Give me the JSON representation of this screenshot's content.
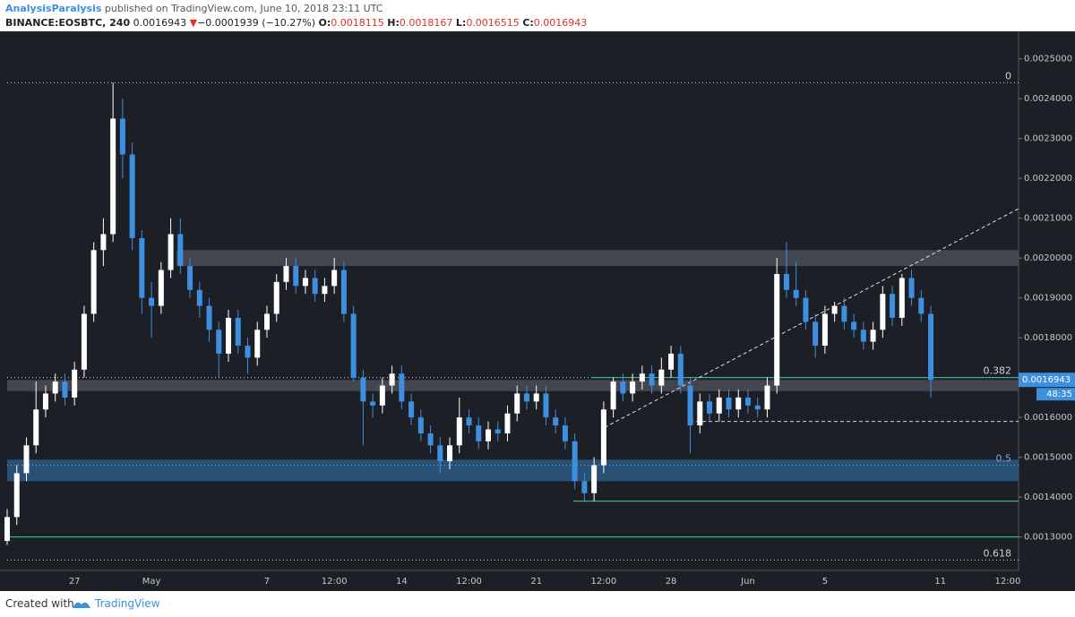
{
  "header": {
    "author": "AnalysisParalysis",
    "published": "published on TradingView.com, June 10, 2018 23:11 UTC",
    "symbol": "BINANCE:EOSBTC, 240",
    "price": "0.0016943",
    "arrow": "▼",
    "change": "−0.0001939 (−10.27%)",
    "o_label": "O:",
    "o": "0.0018115",
    "h_label": "H:",
    "h": "0.0018167",
    "l_label": "L:",
    "l": "0.0016515",
    "c_label": "C:",
    "c": "0.0016943"
  },
  "footer": {
    "created": "Created with",
    "brand": "TradingView"
  },
  "chart_data": {
    "type": "candlestick",
    "categories": [
      null,
      null,
      null,
      null,
      null,
      null,
      null,
      "27",
      null,
      null,
      null,
      null,
      null,
      null,
      null,
      "May",
      null,
      null,
      null,
      null,
      null,
      null,
      null,
      null,
      null,
      null,
      null,
      "7",
      null,
      null,
      null,
      null,
      null,
      null,
      "12:00",
      null,
      null,
      null,
      null,
      null,
      null,
      "14",
      null,
      null,
      null,
      null,
      null,
      null,
      "12:00",
      null,
      null,
      null,
      null,
      null,
      null,
      "21",
      null,
      null,
      null,
      null,
      null,
      null,
      "12:00",
      null,
      null,
      null,
      null,
      null,
      null,
      "28",
      null,
      null,
      null,
      null,
      null,
      null,
      null,
      "Jun",
      null,
      null,
      null,
      null,
      null,
      null,
      null,
      "5",
      null,
      null,
      null,
      null,
      null,
      null,
      null,
      null,
      null,
      null,
      null,
      "11",
      null,
      null,
      null,
      null,
      null,
      null,
      "12:00"
    ],
    "open": [
      0.00129,
      0.00135,
      0.00146,
      0.00153,
      0.00162,
      0.00166,
      0.00169,
      0.00165,
      0.00172,
      0.00186,
      0.00202,
      0.00206,
      0.00235,
      0.00226,
      0.00205,
      0.0019,
      0.00188,
      0.00197,
      0.00206,
      0.00198,
      0.00192,
      0.00188,
      0.00182,
      0.00176,
      0.00185,
      0.00178,
      0.00175,
      0.00182,
      0.00186,
      0.00194,
      0.00198,
      0.00193,
      0.00195,
      0.00191,
      0.00193,
      0.00197,
      0.00186,
      0.0017,
      0.00164,
      0.00163,
      0.00168,
      0.00171,
      0.00164,
      0.0016,
      0.00156,
      0.00153,
      0.00149,
      0.00153,
      0.0016,
      0.00158,
      0.00154,
      0.00157,
      0.00156,
      0.00161,
      0.00166,
      0.00164,
      0.00166,
      0.0016,
      0.00158,
      0.00154,
      0.00144,
      0.00141,
      0.00148,
      0.00162,
      0.00169,
      0.00166,
      0.00169,
      0.00171,
      0.00168,
      0.00172,
      0.00176,
      0.00168,
      0.00158,
      0.00164,
      0.00161,
      0.00165,
      0.00162,
      0.00165,
      0.00163,
      0.00162,
      0.00168,
      0.00196,
      0.00192,
      0.0019,
      0.00184,
      0.00178,
      0.00186,
      0.00188,
      0.00184,
      0.00182,
      0.00179,
      0.00182,
      0.00191,
      0.00185,
      0.00195,
      0.0019,
      0.00186,
      null,
      null,
      null,
      null,
      null,
      null,
      null,
      null
    ],
    "high": [
      0.00137,
      0.00148,
      0.00155,
      0.00169,
      0.00168,
      0.00171,
      0.00171,
      0.00174,
      0.00188,
      0.00204,
      0.0021,
      0.00244,
      0.0024,
      0.00229,
      0.00207,
      0.00194,
      0.00199,
      0.0021,
      0.0021,
      0.002,
      0.00194,
      0.0019,
      0.00184,
      0.00187,
      0.00187,
      0.0018,
      0.00184,
      0.00188,
      0.00196,
      0.002,
      0.002,
      0.00197,
      0.00197,
      0.00195,
      0.002,
      0.00199,
      0.00188,
      0.00172,
      0.00166,
      0.0017,
      0.00173,
      0.00173,
      0.00166,
      0.00162,
      0.00158,
      0.00155,
      0.00155,
      0.00165,
      0.00162,
      0.0016,
      0.00159,
      0.00159,
      0.00163,
      0.00168,
      0.00168,
      0.00168,
      0.00168,
      0.00162,
      0.0016,
      0.00156,
      0.00146,
      0.0015,
      0.00164,
      0.0017,
      0.00171,
      0.00171,
      0.00173,
      0.00173,
      0.00175,
      0.00178,
      0.00178,
      0.0017,
      0.00166,
      0.00166,
      0.00167,
      0.00167,
      0.00167,
      0.00167,
      0.00165,
      0.0017,
      0.002,
      0.00204,
      0.00199,
      0.00192,
      0.00186,
      0.00188,
      0.00189,
      0.0019,
      0.00186,
      0.00184,
      0.00184,
      0.00193,
      0.00193,
      0.00196,
      0.00197,
      0.00192,
      0.00188,
      null,
      null,
      null,
      null,
      null,
      null,
      null,
      null
    ],
    "low": [
      0.00128,
      0.00133,
      0.00144,
      0.00151,
      0.0016,
      0.00164,
      0.00163,
      0.00163,
      0.0017,
      0.00184,
      0.00198,
      0.00204,
      0.0022,
      0.00202,
      0.00186,
      0.0018,
      0.00186,
      0.00195,
      0.00196,
      0.0019,
      0.00185,
      0.00179,
      0.0017,
      0.00174,
      0.00176,
      0.00171,
      0.00173,
      0.0018,
      0.00184,
      0.00192,
      0.00191,
      0.00191,
      0.00189,
      0.00189,
      0.00191,
      0.00184,
      0.00169,
      0.00153,
      0.0016,
      0.00161,
      0.00166,
      0.00162,
      0.00158,
      0.00154,
      0.00151,
      0.00146,
      0.00147,
      0.00151,
      0.00156,
      0.00152,
      0.00152,
      0.00154,
      0.00154,
      0.00159,
      0.00162,
      0.00162,
      0.00158,
      0.00156,
      0.00152,
      0.00142,
      0.00139,
      0.00139,
      0.00146,
      0.0016,
      0.00164,
      0.00164,
      0.00167,
      0.00166,
      0.00166,
      0.0017,
      0.00166,
      0.00151,
      0.00156,
      0.00159,
      0.00159,
      0.0016,
      0.0016,
      0.00161,
      0.0016,
      0.0016,
      0.00166,
      0.0019,
      0.00188,
      0.00182,
      0.00175,
      0.00176,
      0.00184,
      0.00182,
      0.0018,
      0.00177,
      0.00177,
      0.0018,
      0.00183,
      0.00183,
      0.00188,
      0.00184,
      0.00165,
      null,
      null,
      null,
      null,
      null,
      null,
      null,
      null
    ],
    "close": [
      0.00135,
      0.00146,
      0.00153,
      0.00162,
      0.00166,
      0.00169,
      0.00165,
      0.00172,
      0.00186,
      0.00202,
      0.00206,
      0.00235,
      0.00226,
      0.00205,
      0.0019,
      0.00188,
      0.00197,
      0.00206,
      0.00198,
      0.00192,
      0.00188,
      0.00182,
      0.00176,
      0.00185,
      0.00178,
      0.00175,
      0.00182,
      0.00186,
      0.00194,
      0.00198,
      0.00193,
      0.00195,
      0.00191,
      0.00193,
      0.00197,
      0.00186,
      0.0017,
      0.00164,
      0.00163,
      0.00168,
      0.00171,
      0.00164,
      0.0016,
      0.00156,
      0.00153,
      0.00149,
      0.00153,
      0.0016,
      0.00158,
      0.00154,
      0.00157,
      0.00156,
      0.00161,
      0.00166,
      0.00164,
      0.00166,
      0.0016,
      0.00158,
      0.00154,
      0.00144,
      0.00141,
      0.00148,
      0.00162,
      0.00169,
      0.00166,
      0.00169,
      0.00171,
      0.00168,
      0.00172,
      0.00176,
      0.00168,
      0.00158,
      0.00164,
      0.00161,
      0.00165,
      0.00162,
      0.00165,
      0.00163,
      0.00162,
      0.00168,
      0.00196,
      0.00192,
      0.0019,
      0.00184,
      0.00178,
      0.00186,
      0.00188,
      0.00184,
      0.00182,
      0.00179,
      0.00182,
      0.00191,
      0.00185,
      0.00195,
      0.0019,
      0.00186,
      0.0016943,
      null,
      null,
      null,
      null,
      null,
      null,
      null,
      null
    ],
    "up_color": "#ffffff",
    "down_color": "#3d8fe0",
    "ylim": [
      0.001216,
      0.002569
    ],
    "yticks": [
      {
        "value": 0.0013,
        "label": "0.0013000"
      },
      {
        "value": 0.0014,
        "label": "0.0014000"
      },
      {
        "value": 0.0015,
        "label": "0.0015000"
      },
      {
        "value": 0.0016,
        "label": "0.0016000"
      },
      {
        "value": 0.0017,
        "label": "0.0017000"
      },
      {
        "value": 0.0018,
        "label": "0.0018000"
      },
      {
        "value": 0.0019,
        "label": "0.0019000"
      },
      {
        "value": 0.002,
        "label": "0.0020000"
      },
      {
        "value": 0.0021,
        "label": "0.0021000"
      },
      {
        "value": 0.0022,
        "label": "0.0022000"
      },
      {
        "value": 0.0023,
        "label": "0.0023000"
      },
      {
        "value": 0.0024,
        "label": "0.0024000"
      },
      {
        "value": 0.0025,
        "label": "0.0025000"
      }
    ],
    "zones": [
      {
        "low": 0.00198,
        "high": 0.00202,
        "color": "#4a4e57"
      },
      {
        "low": 0.001666,
        "high": 0.001694,
        "color": "#4a4e57"
      },
      {
        "low": 0.00144,
        "high": 0.001494,
        "color": "#2c5a85"
      }
    ],
    "levels": [
      {
        "price": 0.0013,
        "color": "#3fd68f",
        "style": "solid"
      },
      {
        "price": 0.00139,
        "color": "#3fd68f",
        "style": "solid"
      },
      {
        "price": 0.0017,
        "color": "#3fc0b0",
        "style": "solid"
      },
      {
        "price": 0.00159,
        "color": "#d0d0d0",
        "style": "dashed"
      }
    ],
    "fib": [
      {
        "ratio": 0,
        "price": 0.00244,
        "color": "#d0d0d0"
      },
      {
        "ratio": 0.382,
        "price": 0.0017,
        "color": "#d0d0d0"
      },
      {
        "ratio": 0.5,
        "price": 0.00148,
        "color": "#6aa9e8"
      },
      {
        "ratio": 0.618,
        "price": 0.001242,
        "color": "#d0d0d0"
      }
    ],
    "trendline": {
      "from": 0.001575,
      "to": 0.002124,
      "color": "#e0e0e0"
    },
    "last_price": "0.0016943",
    "countdown": "48:35"
  }
}
